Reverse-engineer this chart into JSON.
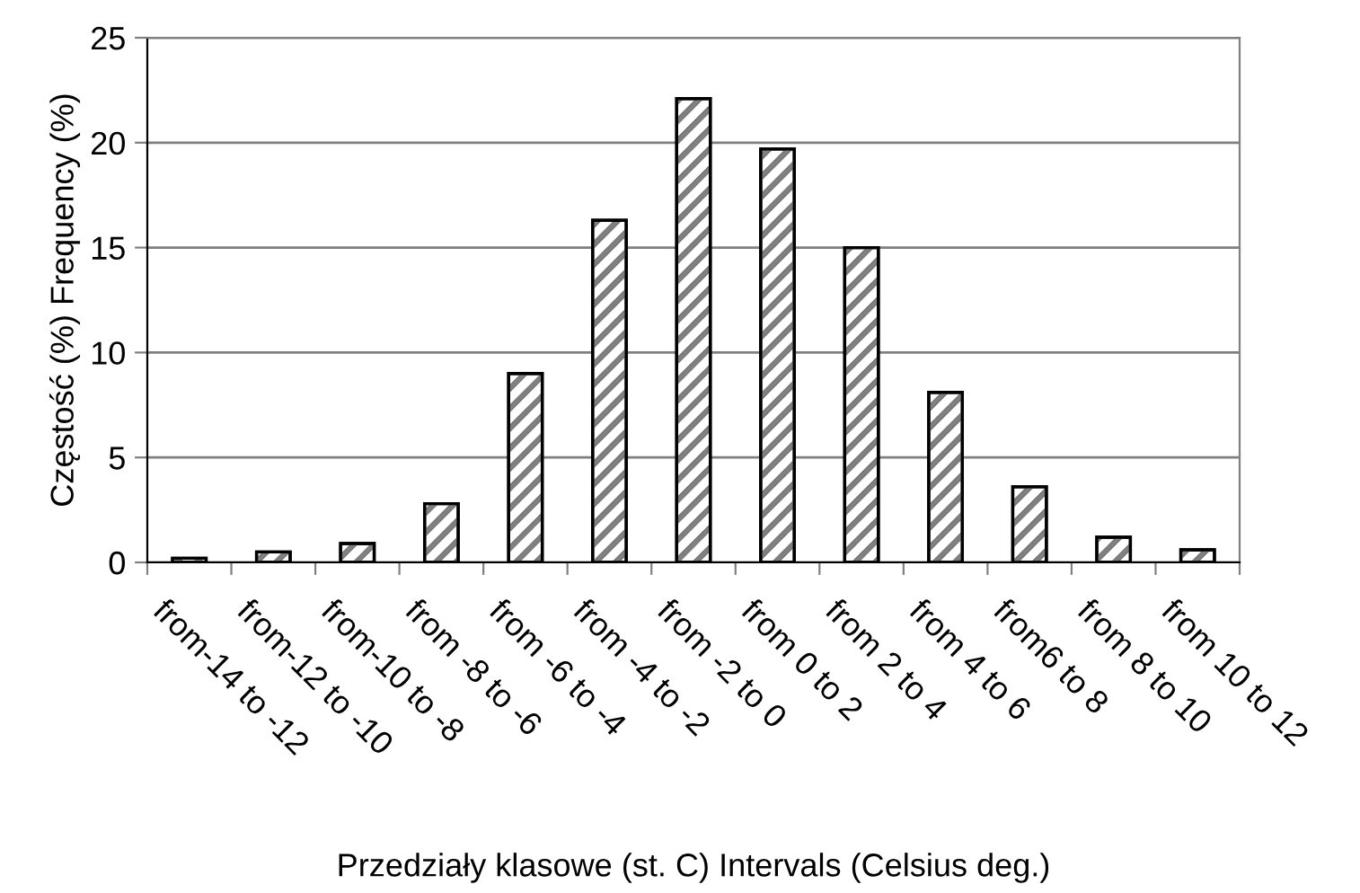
{
  "chart_data": {
    "type": "bar",
    "xlabel": "Przedziały klasowe (st. C) Intervals (Celsius deg.)",
    "ylabel": "Częstość (%) Frequency (%)",
    "categories": [
      "from-14 to -12",
      "from-12 to -10",
      "from-10 to -8",
      "from -8 to -6",
      "from -6 to -4",
      "from -4 to -2",
      "from -2 to 0",
      "from 0 to 2",
      "from 2 to 4",
      "from 4 to 6",
      "from6 to 8",
      "from 8 to 10",
      "from 10 to 12"
    ],
    "values": [
      0.2,
      0.5,
      0.9,
      2.8,
      9.0,
      16.3,
      22.1,
      19.7,
      15.0,
      8.1,
      3.6,
      1.2,
      0.6
    ],
    "color": "#808080",
    "ylim": [
      0,
      25
    ],
    "yticks": [
      0,
      5,
      10,
      15,
      20,
      25
    ],
    "grid": "y",
    "legend": false
  }
}
